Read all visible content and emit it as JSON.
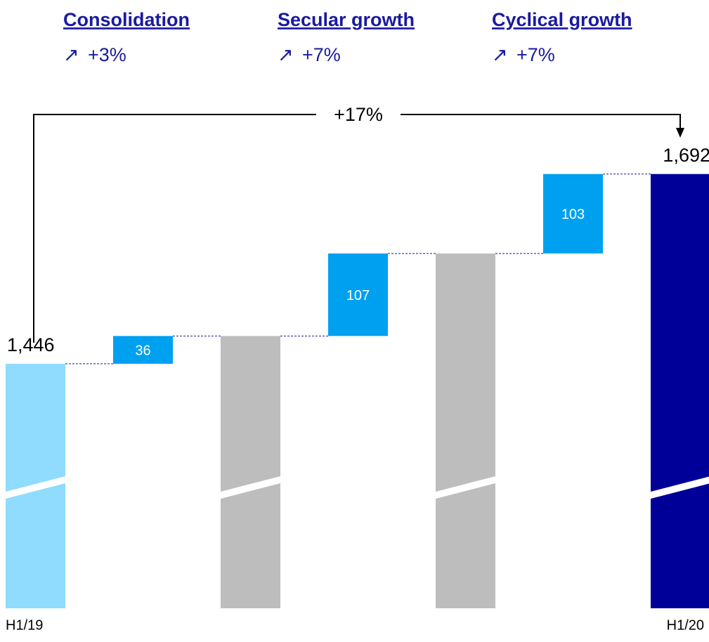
{
  "chart_data": {
    "type": "waterfall",
    "annotations": [
      {
        "title": "Consolidation",
        "change": "+3%"
      },
      {
        "title": "Secular growth",
        "change": "+7%"
      },
      {
        "title": "Cyclical growth",
        "change": "+7%"
      }
    ],
    "total_change": "+17%",
    "categories": [
      "H1/19",
      null,
      null,
      null,
      null,
      null,
      "H1/20"
    ],
    "values": [
      1446,
      36,
      1482,
      107,
      1589,
      103,
      1692
    ],
    "value_labels": [
      "1,446",
      "36",
      null,
      "107",
      null,
      "103",
      "1,692"
    ],
    "measures": [
      "absolute",
      "relative",
      "total",
      "relative",
      "total",
      "relative",
      "total"
    ],
    "colors": [
      "#8fdcff",
      "#00a0f0",
      "#bdbdbd",
      "#00a0f0",
      "#bdbdbd",
      "#00a0f0",
      "#000099"
    ],
    "ylim": [
      1129,
      1781
    ],
    "broken_axis": true
  }
}
